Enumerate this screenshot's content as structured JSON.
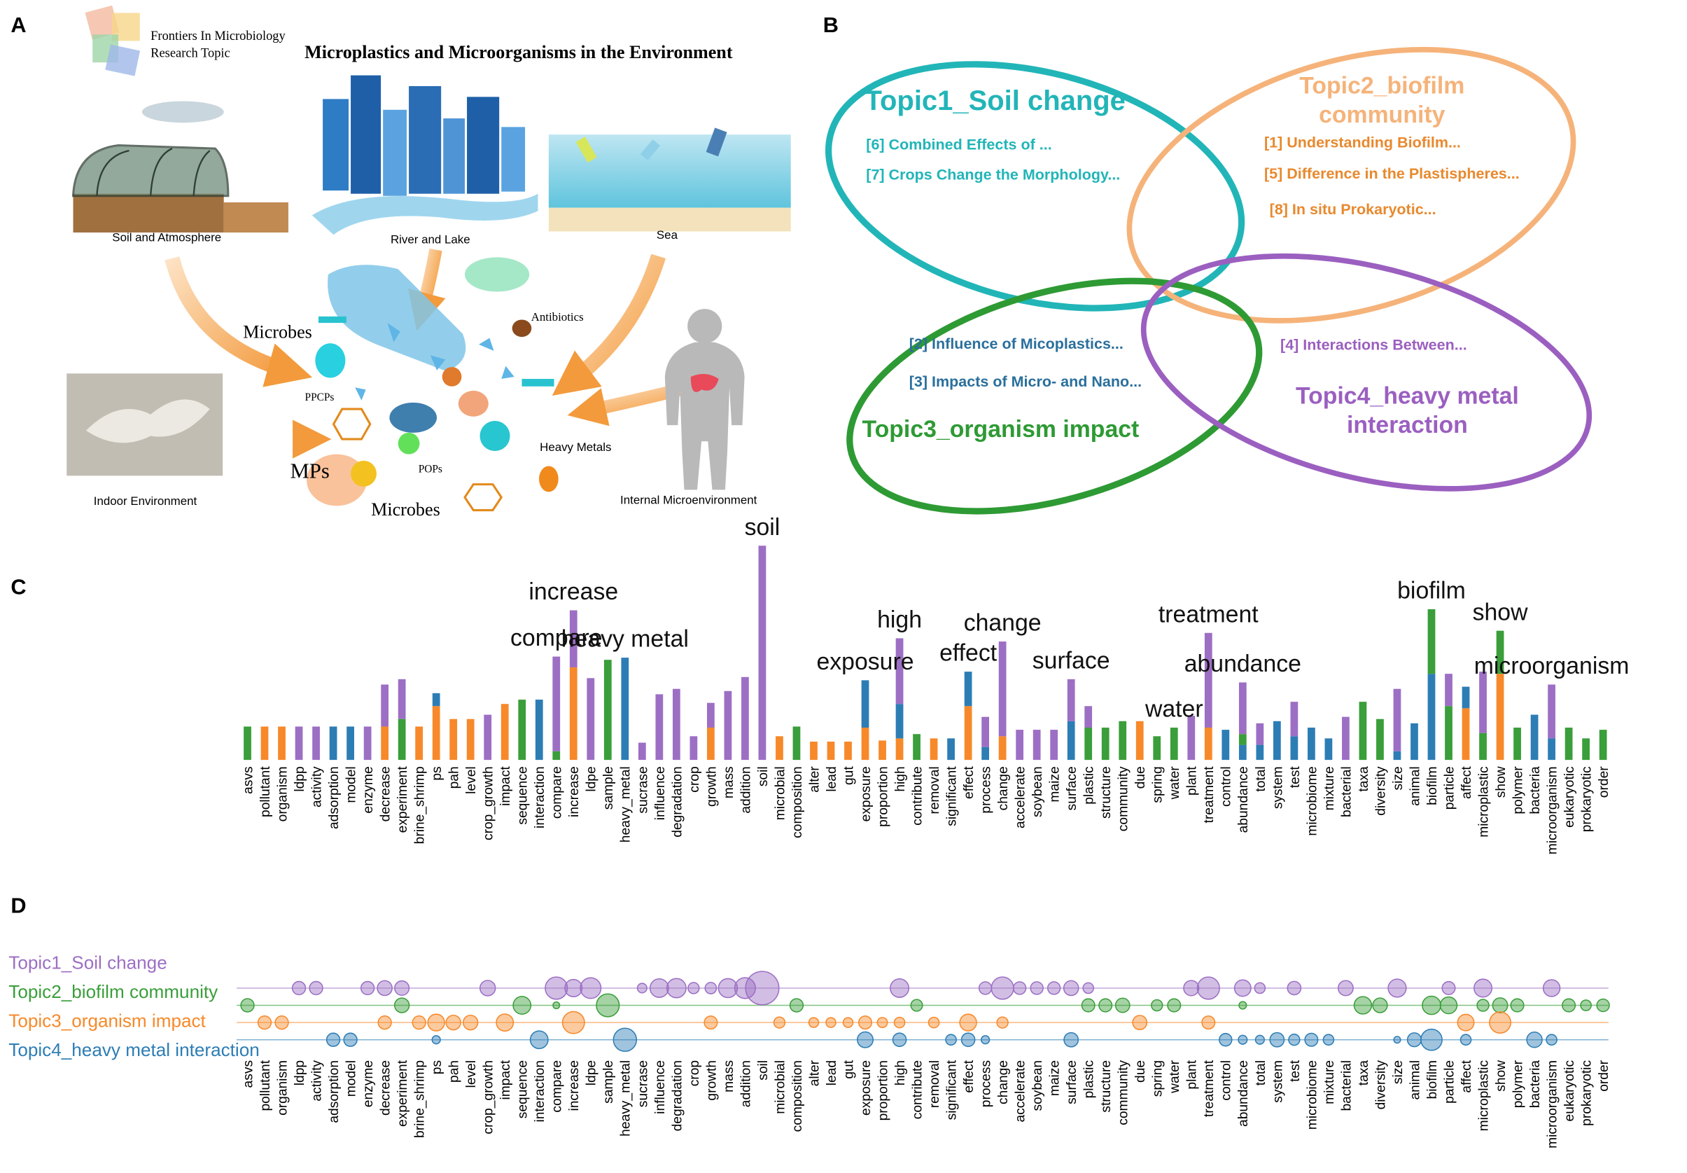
{
  "panels": [
    "A",
    "B",
    "C",
    "D"
  ],
  "panel_a": {
    "logo": [
      "Frontiers In Microbiology",
      "Research Topic"
    ],
    "title": "Microplastics and Microorganisms in the Environment",
    "labels": [
      "Soil and Atmosphere",
      "River and Lake",
      "Sea",
      "Microbes",
      "Antibiotics",
      "PPCPs",
      "Heavy Metals",
      "MPs",
      "POPs",
      "Microbes",
      "Indoor Environment",
      "Internal Microenvironment"
    ]
  },
  "panel_b": {
    "topics": [
      {
        "name": "Topic1_Soil change",
        "color": "#22b5b8",
        "paper_color": "#22b5b8",
        "papers": [
          "[6] Combined Effects of ...",
          "[7] Crops Change the Morphology..."
        ]
      },
      {
        "name": "Topic2_biofilm community",
        "color": "#f5b37a",
        "paper_color": "#e8892e",
        "papers": [
          "[1] Understanding Biofilm...",
          "[5] Difference in the Plastispheres...",
          "[8] In situ Prokaryotic..."
        ]
      },
      {
        "name": "Topic3_organism impact",
        "color": "#2e9a34",
        "paper_color": "#2a6f9c",
        "papers": [
          "[2] Influence of Micoplastics...",
          "[3] Impacts of Micro- and Nano..."
        ]
      },
      {
        "name": "Topic4_heavy metal interaction",
        "color": "#9b5fc0",
        "paper_color": "#9b5fc0",
        "papers": [
          "[4] Interactions Between..."
        ]
      }
    ]
  },
  "chart_data": {
    "type": "bar",
    "stacked": true,
    "ylim": [
      0,
      210
    ],
    "categories": [
      "asvs",
      "pollutant",
      "organism",
      "ldpp",
      "activity",
      "adsorption",
      "model",
      "enzyme",
      "decrease",
      "experiment",
      "brine_shrimp",
      "ps",
      "pah",
      "level",
      "crop_growth",
      "impact",
      "sequence",
      "interaction",
      "compare",
      "increase",
      "ldpe",
      "sample",
      "heavy_metal",
      "sucrase",
      "influence",
      "degradation",
      "crop",
      "growth",
      "mass",
      "addition",
      "soil",
      "microbial",
      "composition",
      "alter",
      "lead",
      "gut",
      "exposure",
      "proportion",
      "high",
      "contribute",
      "removal",
      "significant",
      "effect",
      "process",
      "change",
      "accelerate",
      "soybean",
      "maize",
      "surface",
      "plastic",
      "structure",
      "community",
      "due",
      "spring",
      "water",
      "plant",
      "treatment",
      "control",
      "abundance",
      "total",
      "system",
      "test",
      "microbiome",
      "mixture",
      "bacterial",
      "taxa",
      "diversity",
      "size",
      "animal",
      "biofilm",
      "particle",
      "affect",
      "microplastic",
      "show",
      "polymer",
      "bacteria",
      "microorganism",
      "eukaryotic",
      "prokaryotic",
      "order"
    ],
    "series": [
      {
        "name": "Topic1_Soil change",
        "color": "#9c6fc4",
        "values": [
          0,
          0,
          0,
          31,
          31,
          0,
          0,
          31,
          39,
          37,
          0,
          0,
          0,
          0,
          42,
          0,
          0,
          0,
          88,
          53,
          76,
          0,
          0,
          16,
          61,
          66,
          22,
          23,
          64,
          77,
          199,
          0,
          0,
          0,
          0,
          0,
          0,
          0,
          61,
          0,
          0,
          0,
          0,
          28,
          88,
          28,
          28,
          28,
          39,
          20,
          0,
          0,
          0,
          0,
          0,
          41,
          88,
          0,
          48,
          20,
          0,
          32,
          0,
          0,
          40,
          0,
          0,
          58,
          0,
          0,
          30,
          0,
          57,
          0,
          0,
          0,
          50,
          0,
          0,
          0
        ]
      },
      {
        "name": "Topic2_biofilm community",
        "color": "#3a9e3a",
        "values": [
          31,
          0,
          0,
          0,
          0,
          0,
          0,
          0,
          0,
          38,
          0,
          0,
          0,
          0,
          0,
          0,
          56,
          0,
          8,
          0,
          0,
          93,
          0,
          0,
          0,
          0,
          0,
          0,
          0,
          0,
          0,
          0,
          31,
          0,
          0,
          0,
          0,
          0,
          0,
          24,
          0,
          0,
          0,
          0,
          0,
          0,
          0,
          0,
          0,
          30,
          30,
          36,
          0,
          22,
          30,
          0,
          0,
          0,
          10,
          0,
          0,
          0,
          0,
          0,
          0,
          54,
          38,
          0,
          0,
          60,
          50,
          0,
          25,
          40,
          30,
          0,
          0,
          30,
          20,
          28
        ]
      },
      {
        "name": "Topic3_organism impact",
        "color": "#f7892a",
        "values": [
          0,
          31,
          31,
          0,
          0,
          0,
          0,
          0,
          31,
          0,
          31,
          50,
          38,
          38,
          0,
          52,
          0,
          0,
          0,
          86,
          0,
          0,
          0,
          0,
          0,
          0,
          0,
          30,
          0,
          0,
          0,
          22,
          0,
          17,
          17,
          17,
          30,
          18,
          20,
          0,
          20,
          0,
          50,
          0,
          22,
          0,
          0,
          0,
          0,
          0,
          0,
          0,
          36,
          0,
          0,
          0,
          30,
          0,
          0,
          0,
          0,
          0,
          0,
          0,
          0,
          0,
          0,
          0,
          0,
          0,
          0,
          48,
          0,
          80,
          0,
          0,
          0,
          0,
          0,
          0
        ]
      },
      {
        "name": "Topic4_heavy metal interaction",
        "color": "#2d7db5",
        "values": [
          0,
          0,
          0,
          0,
          0,
          31,
          31,
          0,
          0,
          0,
          0,
          12,
          0,
          0,
          0,
          0,
          0,
          56,
          0,
          0,
          0,
          0,
          95,
          0,
          0,
          0,
          0,
          0,
          0,
          0,
          0,
          0,
          0,
          0,
          0,
          0,
          44,
          0,
          32,
          0,
          0,
          20,
          32,
          12,
          0,
          0,
          0,
          0,
          36,
          0,
          0,
          0,
          0,
          0,
          0,
          0,
          0,
          28,
          14,
          14,
          36,
          22,
          30,
          20,
          0,
          0,
          0,
          8,
          34,
          80,
          0,
          20,
          0,
          0,
          0,
          42,
          20,
          0,
          0,
          0
        ]
      }
    ],
    "annotations": [
      "compare",
      "increase",
      "heavy metal",
      "soil",
      "exposure",
      "high",
      "effect",
      "change",
      "surface",
      "water",
      "treatment",
      "abundance",
      "biofilm",
      "show",
      "microorganism"
    ]
  }
}
